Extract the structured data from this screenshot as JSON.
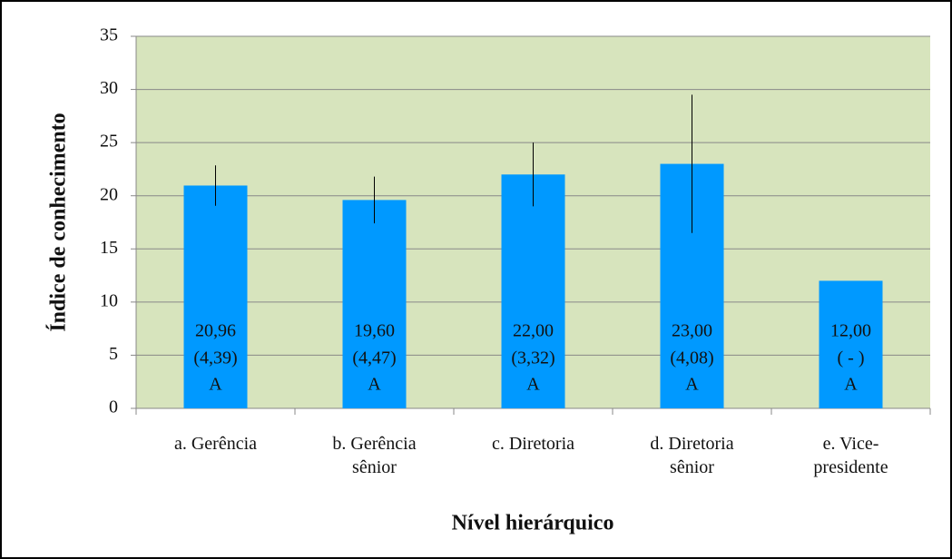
{
  "chart_data": {
    "type": "bar",
    "y_label": "Índice de conhecimento",
    "x_label": "Nível hierárquico",
    "categories": [
      "a. Gerência",
      "b. Gerência sênior",
      "c. Diretoria",
      "d. Diretoria sênior",
      "e. Vice-presidente"
    ],
    "values": [
      20.96,
      19.6,
      22,
      23,
      12
    ],
    "value_labels": [
      "20,96",
      "19,60",
      "22,00",
      "23,00",
      "12,00"
    ],
    "errors": [
      1.9,
      2.2,
      3.0,
      6.5,
      null
    ],
    "sd_labels": [
      "(4,39)",
      "(4,47)",
      "(3,32)",
      "(4,08)",
      "( - )"
    ],
    "group_labels": [
      "A",
      "A",
      "A",
      "A",
      "A"
    ],
    "color": "#0099ff",
    "ylim": [
      0,
      35
    ],
    "yticks": [
      0,
      5,
      10,
      15,
      20,
      25,
      30,
      35
    ],
    "grid": true
  }
}
